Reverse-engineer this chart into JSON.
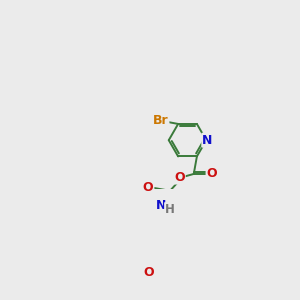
{
  "background_color": "#ebebeb",
  "bond_color": "#3a7a3a",
  "atom_colors": {
    "Br": "#cc7700",
    "N": "#1010cc",
    "O": "#cc1010",
    "H": "#777777"
  },
  "figsize": [
    3.0,
    3.0
  ],
  "dpi": 100
}
